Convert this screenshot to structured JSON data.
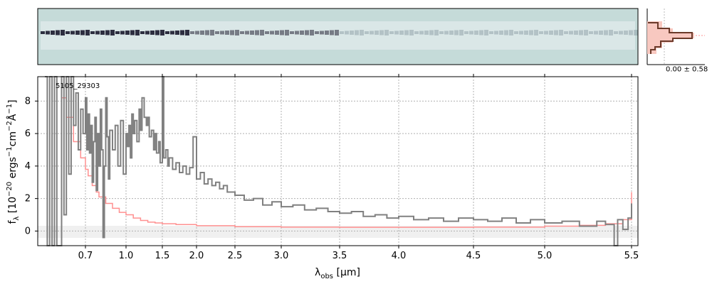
{
  "chart_data": {
    "type": "line",
    "object_id": "5105_29303",
    "xlabel_main": "λ",
    "xlabel_sub": "obs",
    "xlabel_unit": " [μm]",
    "ylabel_main": "f",
    "ylabel_sub": "λ",
    "ylabel_unit_pre": " [10",
    "ylabel_exp1": "−20",
    "ylabel_unit_mid": " ergs",
    "ylabel_exp2": "−1",
    "ylabel_unit_mid2": "cm",
    "ylabel_exp3": "−2",
    "ylabel_unit_mid3": "Å",
    "ylabel_exp4": "−1",
    "ylabel_unit_post": "]",
    "xlim": [
      0.5,
      5.52
    ],
    "ylim": [
      -0.9,
      9.5
    ],
    "x_ticks": [
      {
        "v": 0.7,
        "label": "0.7"
      },
      {
        "v": 1.0,
        "label": "1.0"
      },
      {
        "v": 1.5,
        "label": "1.5"
      },
      {
        "v": 2.0,
        "label": "2.0"
      },
      {
        "v": 2.5,
        "label": "2.5"
      },
      {
        "v": 3.0,
        "label": "3.0"
      },
      {
        "v": 3.5,
        "label": "3.5"
      },
      {
        "v": 4.0,
        "label": "4.0"
      },
      {
        "v": 4.5,
        "label": "4.5"
      },
      {
        "v": 5.0,
        "label": "5.0"
      },
      {
        "v": 5.5,
        "label": "5.5"
      }
    ],
    "y_ticks": [
      {
        "v": 0,
        "label": "0"
      },
      {
        "v": 2,
        "label": "2"
      },
      {
        "v": 4,
        "label": "4"
      },
      {
        "v": 6,
        "label": "6"
      },
      {
        "v": 8,
        "label": "8"
      }
    ],
    "grid": true,
    "series": [
      {
        "color": "#808080",
        "points": [
          [
            0.53,
            9.5
          ],
          [
            0.54,
            -0.9
          ],
          [
            0.55,
            9.5
          ],
          [
            0.56,
            -0.9
          ],
          [
            0.57,
            9.5
          ],
          [
            0.58,
            -0.9
          ],
          [
            0.6,
            9.5
          ],
          [
            0.61,
            1.0
          ],
          [
            0.62,
            9.5
          ],
          [
            0.63,
            3.5
          ],
          [
            0.64,
            9.5
          ],
          [
            0.65,
            6.5
          ],
          [
            0.66,
            8.5
          ],
          [
            0.67,
            5.0
          ],
          [
            0.68,
            7.5
          ],
          [
            0.69,
            6.0
          ],
          [
            0.7,
            8.2
          ],
          [
            0.71,
            5.0
          ],
          [
            0.72,
            7.2
          ],
          [
            0.73,
            4.8
          ],
          [
            0.74,
            6.5
          ],
          [
            0.75,
            3.0
          ],
          [
            0.76,
            5.5
          ],
          [
            0.77,
            7.0
          ],
          [
            0.78,
            2.5
          ],
          [
            0.79,
            6.0
          ],
          [
            0.8,
            4.0
          ],
          [
            0.81,
            7.5
          ],
          [
            0.82,
            5.0
          ],
          [
            0.83,
            -0.4
          ],
          [
            0.84,
            4.0
          ],
          [
            0.85,
            8.2
          ],
          [
            0.86,
            5.8
          ],
          [
            0.87,
            3.2
          ],
          [
            0.88,
            6.2
          ],
          [
            0.9,
            5.0
          ],
          [
            0.92,
            6.5
          ],
          [
            0.94,
            4.0
          ],
          [
            0.96,
            6.8
          ],
          [
            0.98,
            3.5
          ],
          [
            1.0,
            6.0
          ],
          [
            1.02,
            5.2
          ],
          [
            1.04,
            6.5
          ],
          [
            1.06,
            4.5
          ],
          [
            1.08,
            7.2
          ],
          [
            1.1,
            6.0
          ],
          [
            1.12,
            6.8
          ],
          [
            1.15,
            5.5
          ],
          [
            1.18,
            7.5
          ],
          [
            1.2,
            6.2
          ],
          [
            1.22,
            8.2
          ],
          [
            1.25,
            7.0
          ],
          [
            1.28,
            6.5
          ],
          [
            1.3,
            7.0
          ],
          [
            1.32,
            5.8
          ],
          [
            1.35,
            6.2
          ],
          [
            1.38,
            5.0
          ],
          [
            1.4,
            6.0
          ],
          [
            1.42,
            4.8
          ],
          [
            1.45,
            5.5
          ],
          [
            1.47,
            4.2
          ],
          [
            1.5,
            9.5
          ],
          [
            1.52,
            4.5
          ],
          [
            1.55,
            5.0
          ],
          [
            1.58,
            4.0
          ],
          [
            1.6,
            4.5
          ],
          [
            1.65,
            3.8
          ],
          [
            1.7,
            4.2
          ],
          [
            1.75,
            3.6
          ],
          [
            1.8,
            4.0
          ],
          [
            1.85,
            3.5
          ],
          [
            1.9,
            3.9
          ],
          [
            1.95,
            5.8
          ],
          [
            2.0,
            3.2
          ],
          [
            2.05,
            3.6
          ],
          [
            2.1,
            2.9
          ],
          [
            2.15,
            3.2
          ],
          [
            2.2,
            2.8
          ],
          [
            2.25,
            3.0
          ],
          [
            2.3,
            2.6
          ],
          [
            2.35,
            2.8
          ],
          [
            2.4,
            2.4
          ],
          [
            2.5,
            2.2
          ],
          [
            2.6,
            1.9
          ],
          [
            2.7,
            2.0
          ],
          [
            2.8,
            1.6
          ],
          [
            2.9,
            1.8
          ],
          [
            3.0,
            1.5
          ],
          [
            3.1,
            1.6
          ],
          [
            3.2,
            1.3
          ],
          [
            3.3,
            1.4
          ],
          [
            3.4,
            1.2
          ],
          [
            3.5,
            1.1
          ],
          [
            3.6,
            1.2
          ],
          [
            3.7,
            0.9
          ],
          [
            3.8,
            1.0
          ],
          [
            3.9,
            0.8
          ],
          [
            4.0,
            0.9
          ],
          [
            4.1,
            0.7
          ],
          [
            4.2,
            0.8
          ],
          [
            4.3,
            0.6
          ],
          [
            4.4,
            0.8
          ],
          [
            4.5,
            0.7
          ],
          [
            4.6,
            0.6
          ],
          [
            4.7,
            0.8
          ],
          [
            4.8,
            0.5
          ],
          [
            4.9,
            0.7
          ],
          [
            5.0,
            0.5
          ],
          [
            5.1,
            0.6
          ],
          [
            5.2,
            0.3
          ],
          [
            5.3,
            0.6
          ],
          [
            5.35,
            0.4
          ],
          [
            5.4,
            -0.9
          ],
          [
            5.42,
            0.7
          ],
          [
            5.45,
            0.1
          ],
          [
            5.48,
            0.8
          ],
          [
            5.5,
            1.7
          ]
        ]
      },
      {
        "color": "#ff9090",
        "points": [
          [
            0.6,
            8.2
          ],
          [
            0.62,
            7.0
          ],
          [
            0.65,
            5.5
          ],
          [
            0.68,
            4.5
          ],
          [
            0.7,
            3.8
          ],
          [
            0.72,
            3.4
          ],
          [
            0.75,
            2.8
          ],
          [
            0.78,
            2.4
          ],
          [
            0.8,
            2.1
          ],
          [
            0.85,
            1.7
          ],
          [
            0.9,
            1.4
          ],
          [
            0.95,
            1.15
          ],
          [
            1.0,
            1.0
          ],
          [
            1.1,
            0.8
          ],
          [
            1.2,
            0.65
          ],
          [
            1.3,
            0.55
          ],
          [
            1.4,
            0.5
          ],
          [
            1.5,
            0.45
          ],
          [
            1.7,
            0.4
          ],
          [
            2.0,
            0.33
          ],
          [
            2.5,
            0.27
          ],
          [
            3.0,
            0.24
          ],
          [
            3.5,
            0.23
          ],
          [
            4.0,
            0.23
          ],
          [
            4.5,
            0.24
          ],
          [
            5.0,
            0.3
          ],
          [
            5.2,
            0.35
          ],
          [
            5.35,
            0.45
          ],
          [
            5.45,
            0.7
          ],
          [
            5.5,
            2.4
          ]
        ]
      }
    ],
    "inset_label": "0.00 ± 0.58"
  }
}
